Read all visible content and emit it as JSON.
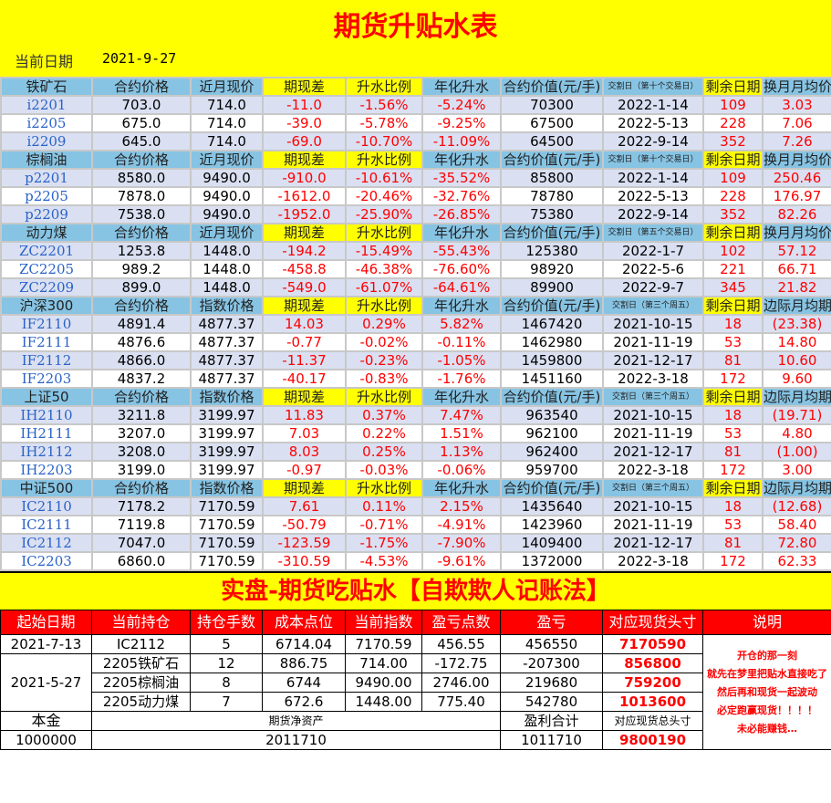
{
  "title": "期货升贴水表",
  "current_date_label": "当前日期",
  "current_date": "2021-9-27",
  "common_headers": {
    "price": "合约价格",
    "basis": "期现差",
    "premium_ratio": "升水比例",
    "annual": "年化升水",
    "value": "合约价值(元/手)",
    "days_left": "剩余日期"
  },
  "sections": [
    {
      "name": "铁矿石",
      "spot_label": "近月现价",
      "delivery_label": "交割日（第十个交易日）",
      "last_label": "换月月均价差",
      "rows": [
        [
          "i2201",
          "703.0",
          "714.0",
          "-11.0",
          "-1.56%",
          "-5.24%",
          "70300",
          "2022-1-14",
          "109",
          "3.03"
        ],
        [
          "i2205",
          "675.0",
          "714.0",
          "-39.0",
          "-5.78%",
          "-9.25%",
          "67500",
          "2022-5-13",
          "228",
          "7.06"
        ],
        [
          "i2209",
          "645.0",
          "714.0",
          "-69.0",
          "-10.70%",
          "-11.09%",
          "64500",
          "2022-9-14",
          "352",
          "7.26"
        ]
      ]
    },
    {
      "name": "棕榈油",
      "spot_label": "近月现价",
      "delivery_label": "交割日（第十个交易日）",
      "last_label": "换月月均价差",
      "rows": [
        [
          "p2201",
          "8580.0",
          "9490.0",
          "-910.0",
          "-10.61%",
          "-35.52%",
          "85800",
          "2022-1-14",
          "109",
          "250.46"
        ],
        [
          "p2205",
          "7878.0",
          "9490.0",
          "-1612.0",
          "-20.46%",
          "-32.76%",
          "78780",
          "2022-5-13",
          "228",
          "176.97"
        ],
        [
          "p2209",
          "7538.0",
          "9490.0",
          "-1952.0",
          "-25.90%",
          "-26.85%",
          "75380",
          "2022-9-14",
          "352",
          "82.26"
        ]
      ]
    },
    {
      "name": "动力煤",
      "spot_label": "近月现价",
      "delivery_label": "交割日（第五个交易日）",
      "last_label": "换月月均价差",
      "rows": [
        [
          "ZC2201",
          "1253.8",
          "1448.0",
          "-194.2",
          "-15.49%",
          "-55.43%",
          "125380",
          "2022-1-7",
          "102",
          "57.12"
        ],
        [
          "ZC2205",
          "989.2",
          "1448.0",
          "-458.8",
          "-46.38%",
          "-76.60%",
          "98920",
          "2022-5-6",
          "221",
          "66.71"
        ],
        [
          "ZC2209",
          "899.0",
          "1448.0",
          "-549.0",
          "-61.07%",
          "-64.61%",
          "89900",
          "2022-9-7",
          "345",
          "21.82"
        ]
      ]
    },
    {
      "name": "沪深300",
      "spot_label": "指数价格",
      "delivery_label": "交割日（第三个周五）",
      "last_label": "边际月均期差",
      "rows": [
        [
          "IF2110",
          "4891.4",
          "4877.37",
          "14.03",
          "0.29%",
          "5.82%",
          "1467420",
          "2021-10-15",
          "18",
          "(23.38)"
        ],
        [
          "IF2111",
          "4876.6",
          "4877.37",
          "-0.77",
          "-0.02%",
          "-0.11%",
          "1462980",
          "2021-11-19",
          "53",
          "14.80"
        ],
        [
          "IF2112",
          "4866.0",
          "4877.37",
          "-11.37",
          "-0.23%",
          "-1.05%",
          "1459800",
          "2021-12-17",
          "81",
          "10.60"
        ],
        [
          "IF2203",
          "4837.2",
          "4877.37",
          "-40.17",
          "-0.83%",
          "-1.76%",
          "1451160",
          "2022-3-18",
          "172",
          "9.60"
        ]
      ]
    },
    {
      "name": "上证50",
      "spot_label": "指数价格",
      "delivery_label": "交割日（第三个周五）",
      "last_label": "边际月均期差",
      "rows": [
        [
          "IH2110",
          "3211.8",
          "3199.97",
          "11.83",
          "0.37%",
          "7.47%",
          "963540",
          "2021-10-15",
          "18",
          "(19.71)"
        ],
        [
          "IH2111",
          "3207.0",
          "3199.97",
          "7.03",
          "0.22%",
          "1.51%",
          "962100",
          "2021-11-19",
          "53",
          "4.80"
        ],
        [
          "IH2112",
          "3208.0",
          "3199.97",
          "8.03",
          "0.25%",
          "1.13%",
          "962400",
          "2021-12-17",
          "81",
          "(1.00)"
        ],
        [
          "IH2203",
          "3199.0",
          "3199.97",
          "-0.97",
          "-0.03%",
          "-0.06%",
          "959700",
          "2022-3-18",
          "172",
          "3.00"
        ]
      ]
    },
    {
      "name": "中证500",
      "spot_label": "指数价格",
      "delivery_label": "交割日（第三个周五）",
      "last_label": "边际月均期差",
      "rows": [
        [
          "IC2110",
          "7178.2",
          "7170.59",
          "7.61",
          "0.11%",
          "2.15%",
          "1435640",
          "2021-10-15",
          "18",
          "(12.68)"
        ],
        [
          "IC2111",
          "7119.8",
          "7170.59",
          "-50.79",
          "-0.71%",
          "-4.91%",
          "1423960",
          "2021-11-19",
          "53",
          "58.40"
        ],
        [
          "IC2112",
          "7047.0",
          "7170.59",
          "-123.59",
          "-1.75%",
          "-7.90%",
          "1409400",
          "2021-12-17",
          "81",
          "72.80"
        ],
        [
          "IC2203",
          "6860.0",
          "7170.59",
          "-310.59",
          "-4.53%",
          "-9.61%",
          "1372000",
          "2022-3-18",
          "172",
          "62.33"
        ]
      ]
    }
  ],
  "ledger": {
    "title": "实盘-期货吃贴水【自欺欺人记账法】",
    "headers": [
      "起始日期",
      "当前持仓",
      "持仓手数",
      "成本点位",
      "当前指数",
      "盈亏点数",
      "盈亏",
      "对应现货头寸",
      "说明"
    ],
    "rows": [
      [
        "2021-7-13",
        "IC2112",
        "5",
        "6714.04",
        "7170.59",
        "456.55",
        "456550",
        "7170590"
      ],
      [
        "2021-5-27",
        "2205铁矿石",
        "12",
        "886.75",
        "714.00",
        "-172.75",
        "-207300",
        "856800"
      ],
      [
        "",
        "2205棕榈油",
        "8",
        "6744",
        "9490.00",
        "2746.00",
        "219680",
        "759200"
      ],
      [
        "",
        "2205动力煤",
        "7",
        "672.6",
        "1448.00",
        "775.40",
        "542780",
        "1013600"
      ]
    ],
    "note": "开仓的那一刻\n就先在梦里把贴水直接吃了\n然后再和现货一起波动\n必定跑赢现货！！！！\n未必能赚钱…",
    "summary_labels": {
      "principal": "本金",
      "net_assets": "期货净资产",
      "profit_total": "盈利合计",
      "total_exposure": "对应现货总头寸"
    },
    "summary_values": {
      "principal": "1000000",
      "net_assets": "2011710",
      "profit_total": "1011710",
      "total_exposure": "9800190"
    }
  },
  "colors": {
    "header_blue": "#87c4e4",
    "highlight_yellow": "#ffff00",
    "row_alt": "#dae0f2",
    "negative_red": "#ff0000",
    "code_blue": "#2a62c8"
  }
}
